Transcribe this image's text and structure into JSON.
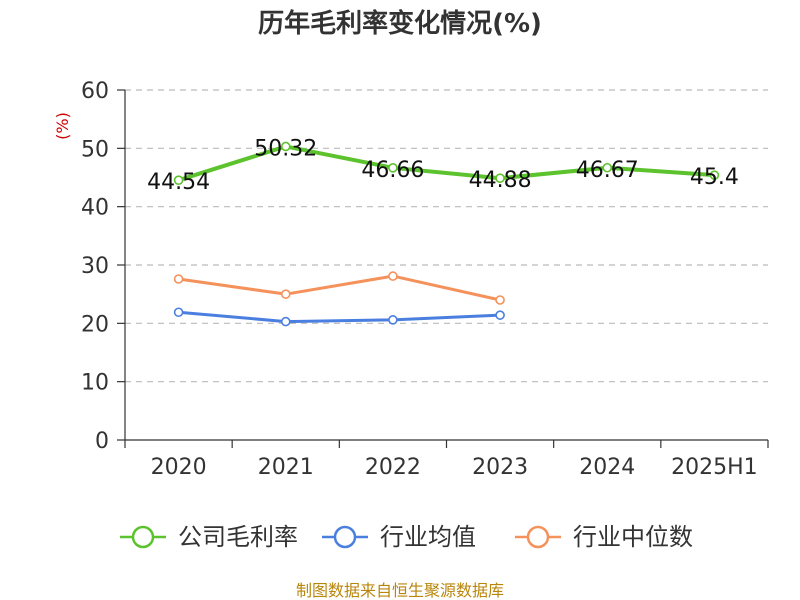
{
  "chart_data": {
    "type": "line",
    "title": "历年毛利率变化情况(%)",
    "ylabel": "(%)",
    "categories": [
      "2020",
      "2021",
      "2022",
      "2023",
      "2024",
      "2025H1"
    ],
    "ylim": [
      0,
      60
    ],
    "yticks": [
      0,
      10,
      20,
      30,
      40,
      50,
      60
    ],
    "grid": true,
    "legend_position": "bottom",
    "series": [
      {
        "name": "公司毛利率",
        "color": "#5cc22d",
        "values": [
          44.54,
          50.32,
          46.66,
          44.88,
          46.67,
          45.4
        ],
        "labels": [
          "44.54",
          "50.32",
          "46.66",
          "44.88",
          "46.67",
          "45.4"
        ]
      },
      {
        "name": "行业均值",
        "color": "#4a7fe0",
        "values": [
          21.9,
          20.3,
          20.6,
          21.4,
          null,
          null
        ]
      },
      {
        "name": "行业中位数",
        "color": "#f5915a",
        "values": [
          27.6,
          25.0,
          28.1,
          24.0,
          null,
          null
        ]
      }
    ]
  },
  "source": "制图数据来自恒生聚源数据库"
}
